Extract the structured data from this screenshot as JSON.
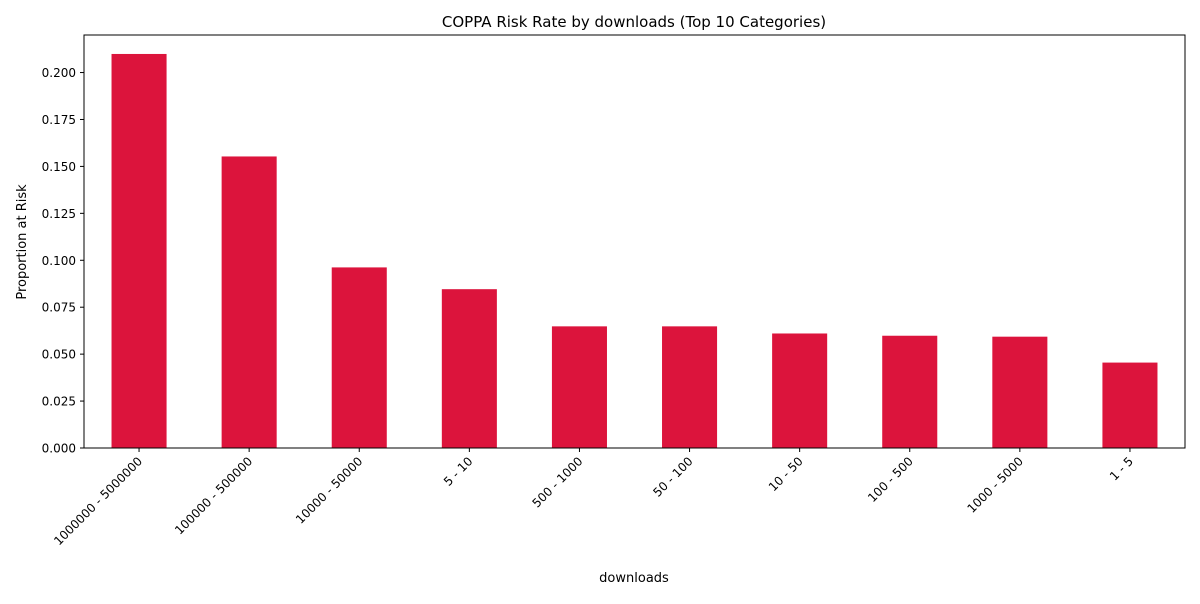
{
  "chart_data": {
    "type": "bar",
    "title": "COPPA Risk Rate by downloads (Top 10 Categories)",
    "xlabel": "downloads",
    "ylabel": "Proportion at Risk",
    "categories": [
      "1000000 - 5000000",
      "100000 - 500000",
      "10000 - 50000",
      "5 - 10",
      "500 - 1000",
      "50 - 100",
      "10 - 50",
      "100 - 500",
      "1000 - 5000",
      "1 - 5"
    ],
    "values": [
      0.2099,
      0.1553,
      0.0962,
      0.0846,
      0.0648,
      0.0648,
      0.061,
      0.0598,
      0.0593,
      0.0455
    ],
    "ylim": [
      0,
      0.22
    ],
    "yticks": [
      0.0,
      0.025,
      0.05,
      0.075,
      0.1,
      0.125,
      0.15,
      0.175,
      0.2
    ],
    "ytick_labels": [
      "0.000",
      "0.025",
      "0.050",
      "0.075",
      "0.100",
      "0.125",
      "0.150",
      "0.175",
      "0.200"
    ],
    "bar_color": "#dc143c",
    "grid": false,
    "legend": "none"
  }
}
